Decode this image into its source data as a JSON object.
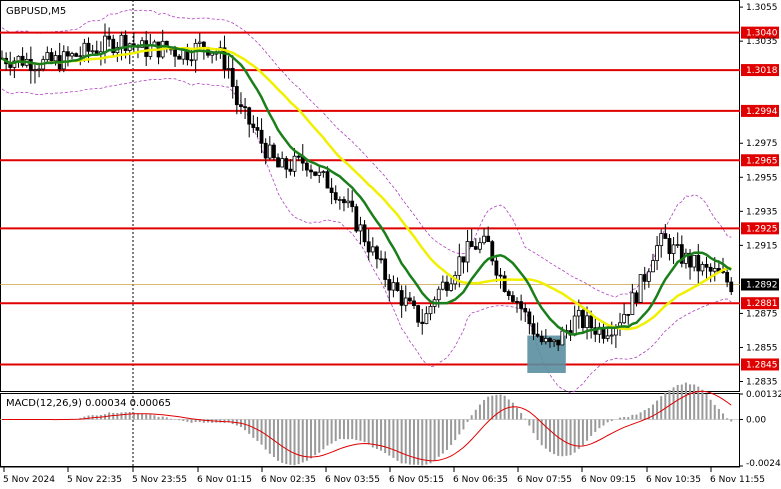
{
  "window": {
    "title": "GBPUSD,M5",
    "indicator_label": "MACD(12,26,9) 0.00034 0.00065"
  },
  "chart_data": {
    "type": "candlestick",
    "symbol": "GBPUSD",
    "timeframe": "M5",
    "title": "GBPUSD,M5",
    "y_ticks": [
      "1.3055",
      "1.3035",
      "1.2975",
      "1.2955",
      "1.2935",
      "1.2915",
      "1.2875",
      "1.2855",
      "1.2835"
    ],
    "ylim": [
      1.283,
      1.3058
    ],
    "x_ticks": [
      "5 Nov 2024",
      "5 Nov 22:35",
      "5 Nov 23:55",
      "6 Nov 01:15",
      "6 Nov 02:35",
      "6 Nov 03:55",
      "6 Nov 05:15",
      "6 Nov 06:35",
      "6 Nov 07:55",
      "6 Nov 09:15",
      "6 Nov 10:35",
      "6 Nov 11:55"
    ],
    "levels": [
      {
        "label": "1.3040",
        "value": 1.304
      },
      {
        "label": "1.3018",
        "value": 1.3018
      },
      {
        "label": "1.2994",
        "value": 1.2994
      },
      {
        "label": "1.2965",
        "value": 1.2965
      },
      {
        "label": "1.2925",
        "value": 1.2925
      },
      {
        "label": "1.2881",
        "value": 1.2881
      },
      {
        "label": "1.2845",
        "value": 1.2845
      }
    ],
    "current_price": {
      "label": "1.2892",
      "value": 1.2892
    },
    "level_color": "#e00000",
    "ma_fast_color": "#1a7f1a",
    "ma_slow_color": "#f0f000",
    "envelope_color": "#b040c0",
    "highlight_color": "#5a8fa0",
    "highlight_zone": {
      "x_from": 0.778,
      "x_to": 0.835,
      "y_from": 1.284,
      "y_to": 1.2862
    },
    "close_path": [
      [
        0.0,
        1.3025
      ],
      [
        0.03,
        1.3024
      ],
      [
        0.06,
        1.3022
      ],
      [
        0.09,
        1.3024
      ],
      [
        0.12,
        1.3028
      ],
      [
        0.15,
        1.3032
      ],
      [
        0.18,
        1.3036
      ],
      [
        0.21,
        1.303
      ],
      [
        0.24,
        1.3031
      ],
      [
        0.27,
        1.3028
      ],
      [
        0.3,
        1.3033
      ],
      [
        0.32,
        1.3028
      ],
      [
        0.335,
        1.302
      ],
      [
        0.35,
        1.2995
      ],
      [
        0.37,
        1.2985
      ],
      [
        0.39,
        1.2972
      ],
      [
        0.41,
        1.296
      ],
      [
        0.43,
        1.2962
      ],
      [
        0.45,
        1.2965
      ],
      [
        0.47,
        1.2955
      ],
      [
        0.49,
        1.295
      ],
      [
        0.51,
        1.2938
      ],
      [
        0.53,
        1.2925
      ],
      [
        0.55,
        1.291
      ],
      [
        0.57,
        1.2895
      ],
      [
        0.59,
        1.2885
      ],
      [
        0.61,
        1.2875
      ],
      [
        0.625,
        1.287
      ],
      [
        0.64,
        1.2885
      ],
      [
        0.66,
        1.2895
      ],
      [
        0.68,
        1.2908
      ],
      [
        0.7,
        1.2915
      ],
      [
        0.72,
        1.2915
      ],
      [
        0.74,
        1.2895
      ],
      [
        0.76,
        1.2885
      ],
      [
        0.78,
        1.287
      ],
      [
        0.8,
        1.2858
      ],
      [
        0.815,
        1.2855
      ],
      [
        0.83,
        1.2862
      ],
      [
        0.85,
        1.2872
      ],
      [
        0.87,
        1.2868
      ],
      [
        0.89,
        1.2865
      ],
      [
        0.91,
        1.287
      ],
      [
        0.93,
        1.288
      ],
      [
        0.95,
        1.2895
      ],
      [
        0.965,
        1.2912
      ],
      [
        0.98,
        1.2918
      ],
      [
        1.0,
        1.291
      ],
      [
        1.02,
        1.2905
      ],
      [
        1.04,
        1.29
      ],
      [
        1.06,
        1.2898
      ],
      [
        1.08,
        1.2892
      ]
    ],
    "macd": {
      "yticks": [
        "0.00132",
        "0.00",
        "-0.00241"
      ],
      "ylim": [
        -0.00241,
        0.00132
      ]
    }
  }
}
